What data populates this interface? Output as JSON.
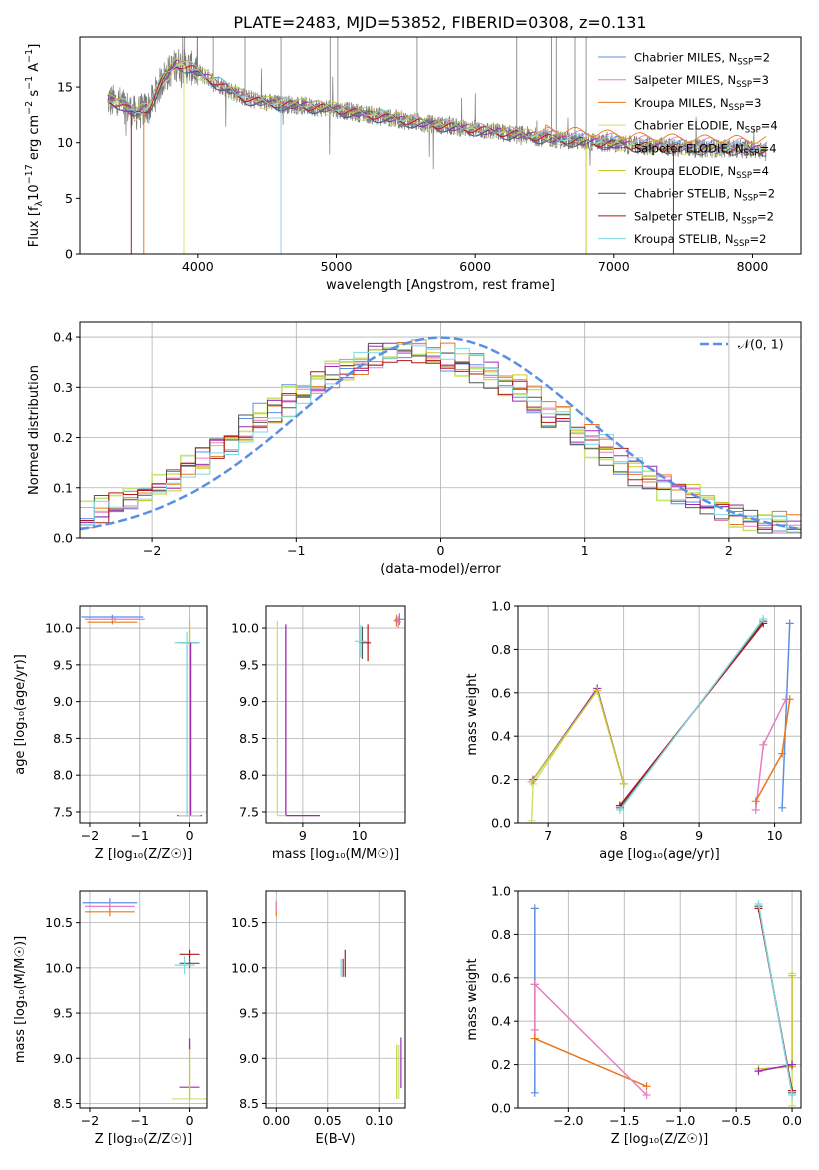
{
  "title": "PLATE=2483, MJD=53852, FIBERID=0308, z=0.131",
  "colors": {
    "chabrier_miles": "#5b8ee6",
    "salpeter_miles": "#e67fc2",
    "kroupa_miles": "#e87820",
    "chabrier_elodie": "#c8e46e",
    "salpeter_elodie": "#9c2bb8",
    "kroupa_elodie": "#c9c930",
    "chabrier_stelib": "#555555",
    "salpeter_stelib": "#b01818",
    "kroupa_stelib": "#7fd8e2",
    "data": "#7a7a7a",
    "gauss": "#5b8ee6"
  },
  "panels": {
    "spectrum": {
      "xlabel": "wavelength [Angstrom, rest frame]",
      "ylabel_main": "Flux [f",
      "ylabel_tail": "erg cm",
      "ylabel_end": "s",
      "xticks": [
        "4000",
        "5000",
        "6000",
        "7000",
        "8000"
      ],
      "yticks": [
        "0",
        "5",
        "10",
        "15"
      ]
    },
    "residuals": {
      "xlabel": "(data-model)/error",
      "ylabel": "Normed distribution",
      "xticks": [
        "−2",
        "−1",
        "0",
        "1",
        "2"
      ],
      "yticks": [
        "0.0",
        "0.1",
        "0.2",
        "0.3",
        "0.4"
      ],
      "gauss_label": "𝒩(0, 1)"
    },
    "z_age": {
      "xlabel": "Z [log₁₀(Z/Z☉)]",
      "ylabel": "age  [log₁₀(age/yr)]",
      "xticks": [
        "−2",
        "−1",
        "0"
      ],
      "yticks": [
        "7.5",
        "8.0",
        "8.5",
        "9.0",
        "9.5",
        "10.0"
      ]
    },
    "mass_age": {
      "xlabel": "mass [log₁₀(M/M☉)]",
      "xticks": [
        "9",
        "10"
      ],
      "yticks": [
        "7.5",
        "8.0",
        "8.5",
        "9.0",
        "9.5",
        "10.0"
      ]
    },
    "age_weight": {
      "xlabel": "age  [log₁₀(age/yr)]",
      "ylabel": "mass weight",
      "xticks": [
        "7",
        "8",
        "9",
        "10"
      ],
      "yticks": [
        "0.0",
        "0.2",
        "0.4",
        "0.6",
        "0.8",
        "1.0"
      ]
    },
    "z_mass": {
      "xlabel": "Z [log₁₀(Z/Z☉)]",
      "ylabel": "mass [log₁₀(M/M☉)]",
      "xticks": [
        "−2",
        "−1",
        "0"
      ],
      "yticks": [
        "8.5",
        "9.0",
        "9.5",
        "10.0",
        "10.5"
      ]
    },
    "ebv_mass": {
      "xlabel": "E(B-V)",
      "xticks": [
        "0.00",
        "0.05",
        "0.10"
      ],
      "yticks": [
        "8.5",
        "9.0",
        "9.5",
        "10.0",
        "10.5"
      ]
    },
    "z_weight": {
      "xlabel": "Z [log₁₀(Z/Z☉)]",
      "ylabel": "mass weight",
      "xticks": [
        "−2.0",
        "−1.5",
        "−1.0",
        "−0.5",
        "0.0"
      ],
      "yticks": [
        "0.0",
        "0.2",
        "0.4",
        "0.6",
        "0.8",
        "1.0"
      ]
    }
  },
  "chart_data": [
    {
      "type": "line",
      "title": "PLATE=2483, MJD=53852, FIBERID=0308, z=0.131",
      "xlabel": "wavelength [Angstrom, rest frame]",
      "ylabel": "Flux [fλ 10^-17 erg cm^-2 s^-1 A^-1]",
      "xlim": [
        3150,
        8350
      ],
      "ylim": [
        0,
        19.5
      ],
      "legend_placement": "upper-right",
      "series": [
        {
          "name": "Chabrier MILES, N_SSP=2",
          "key": "chabrier_miles"
        },
        {
          "name": "Salpeter MILES, N_SSP=3",
          "key": "salpeter_miles"
        },
        {
          "name": "Kroupa MILES, N_SSP=3",
          "key": "kroupa_miles"
        },
        {
          "name": "Chabrier ELODIE, N_SSP=4",
          "key": "chabrier_elodie"
        },
        {
          "name": "Salpeter ELODIE, N_SSP=4",
          "key": "salpeter_elodie"
        },
        {
          "name": "Kroupa ELODIE, N_SSP=4",
          "key": "kroupa_elodie"
        },
        {
          "name": "Chabrier STELIB, N_SSP=2",
          "key": "chabrier_stelib"
        },
        {
          "name": "Salpeter STELIB, N_SSP=2",
          "key": "salpeter_stelib"
        },
        {
          "name": "Kroupa STELIB, N_SSP=2",
          "key": "kroupa_stelib"
        }
      ],
      "continuum": {
        "x": [
          3350,
          3450,
          3550,
          3650,
          3750,
          3850,
          3950,
          4050,
          4150,
          4250,
          4350,
          4450,
          4550,
          4700,
          4850,
          5000,
          5200,
          5400,
          5600,
          5800,
          6000,
          6200,
          6400,
          6600,
          6800,
          7000,
          7200,
          7400,
          7600,
          7800,
          8000,
          8100
        ],
        "y": [
          13.8,
          13.5,
          12.6,
          13.2,
          15.8,
          17.1,
          16.7,
          16.0,
          15.3,
          14.6,
          14.0,
          13.7,
          13.5,
          13.4,
          13.2,
          13.0,
          12.6,
          12.2,
          11.8,
          11.5,
          11.2,
          10.9,
          10.6,
          10.3,
          10.1,
          9.9,
          9.7,
          9.6,
          9.5,
          9.5,
          9.4,
          9.4
        ]
      }
    },
    {
      "type": "bar",
      "xlabel": "(data-model)/error",
      "ylabel": "Normed distribution",
      "xlim": [
        -2.5,
        2.5
      ],
      "ylim": [
        0,
        0.43
      ],
      "grid": true,
      "legend_placement": "upper-right",
      "gauss": {
        "name": "𝒩(0,1)",
        "mean": 0,
        "sigma": 1
      }
    },
    {
      "type": "scatter",
      "xlabel": "Z [log10(Z/Zsun)]",
      "ylabel": "age [log10(age/yr)]",
      "xlim": [
        -2.2,
        0.35
      ],
      "ylim": [
        7.35,
        10.3
      ],
      "points": [
        {
          "key": "chabrier_miles",
          "x": -1.55,
          "y": 10.15,
          "xerr": 0.62,
          "yerr": 0.03
        },
        {
          "key": "salpeter_miles",
          "x": -1.5,
          "y": 10.12,
          "xerr": 0.6,
          "yerr": 0.03
        },
        {
          "key": "kroupa_miles",
          "x": -1.55,
          "y": 10.08,
          "xerr": 0.5,
          "yerr": 0.03
        },
        {
          "key": "chabrier_stelib",
          "x": 0.0,
          "y": 9.8,
          "xerr": 0.2,
          "yerr": 0.05
        },
        {
          "key": "kroupa_stelib",
          "x": -0.05,
          "y": 9.8,
          "xerr": 0.25,
          "yerr": 0.15
        },
        {
          "key": "salpeter_elodie",
          "x": 0.0,
          "y": 7.45,
          "xerr": 0.25,
          "yerr": 0.0
        },
        {
          "key": "chabrier_elodie",
          "x": 0.0,
          "y": 7.45,
          "xerr": 0.22,
          "yerr": 0.0
        }
      ],
      "vlines": [
        {
          "key": "kroupa_elodie",
          "x": 0.0,
          "y0": 7.45,
          "y1": 10.1
        },
        {
          "key": "salpeter_elodie",
          "x": 0.02,
          "y0": 7.45,
          "y1": 9.8
        },
        {
          "key": "kroupa_stelib",
          "x": -0.05,
          "y0": 7.45,
          "y1": 9.8
        }
      ]
    },
    {
      "type": "scatter",
      "xlabel": "mass [log10(M/Msun)]",
      "xlim": [
        8.35,
        10.8
      ],
      "ylim": [
        7.35,
        10.3
      ],
      "points": [
        {
          "key": "salpeter_stelib",
          "x": 10.15,
          "y": 9.8,
          "xerr": 0.05,
          "yerr": 0.25
        },
        {
          "key": "chabrier_stelib",
          "x": 10.05,
          "y": 9.8,
          "xerr": 0.05,
          "yerr": 0.22
        },
        {
          "key": "kroupa_stelib",
          "x": 10.02,
          "y": 9.82,
          "xerr": 0.1,
          "yerr": 0.22
        },
        {
          "key": "kroupa_miles",
          "x": 10.65,
          "y": 10.1,
          "xerr": 0.05,
          "yerr": 0.08
        },
        {
          "key": "chabrier_miles",
          "x": 10.7,
          "y": 10.12,
          "xerr": 0.08,
          "yerr": 0.08
        },
        {
          "key": "salpeter_miles",
          "x": 10.68,
          "y": 10.08,
          "xerr": 0.05,
          "yerr": 0.08
        }
      ],
      "vlines": [
        {
          "key": "chabrier_elodie",
          "x": 8.55,
          "y0": 7.45,
          "y1": 10.1
        },
        {
          "key": "salpeter_elodie",
          "x": 8.7,
          "y0": 7.45,
          "y1": 10.05
        }
      ],
      "hlines": [
        {
          "key": "chabrier_elodie",
          "y": 7.45,
          "x0": 8.55,
          "x1": 9.3
        },
        {
          "key": "salpeter_elodie",
          "y": 7.45,
          "x0": 8.7,
          "x1": 9.3
        }
      ]
    },
    {
      "type": "line",
      "xlabel": "age [log10(age/yr)]",
      "ylabel": "mass weight",
      "xlim": [
        6.6,
        10.35
      ],
      "ylim": [
        0,
        1.0
      ],
      "grid": true,
      "series": [
        {
          "key": "chabrier_miles",
          "x": [
            10.1,
            10.2
          ],
          "y": [
            0.07,
            0.92
          ]
        },
        {
          "key": "salpeter_miles",
          "x": [
            9.75,
            9.85,
            10.15
          ],
          "y": [
            0.06,
            0.36,
            0.57
          ]
        },
        {
          "key": "kroupa_miles",
          "x": [
            9.75,
            10.1,
            10.2
          ],
          "y": [
            0.1,
            0.32,
            0.57
          ]
        },
        {
          "key": "chabrier_elodie",
          "x": [
            6.78,
            6.8,
            7.65,
            8.0
          ],
          "y": [
            0.01,
            0.18,
            0.62,
            0.18
          ]
        },
        {
          "key": "salpeter_elodie",
          "x": [
            6.8,
            7.65,
            8.0
          ],
          "y": [
            0.2,
            0.62,
            0.18
          ]
        },
        {
          "key": "kroupa_elodie",
          "x": [
            6.78,
            7.65,
            8.0
          ],
          "y": [
            0.19,
            0.61,
            0.18
          ]
        },
        {
          "key": "chabrier_stelib",
          "x": [
            7.95,
            9.85
          ],
          "y": [
            0.07,
            0.93
          ]
        },
        {
          "key": "salpeter_stelib",
          "x": [
            7.95,
            9.85
          ],
          "y": [
            0.08,
            0.92
          ]
        },
        {
          "key": "kroupa_stelib",
          "x": [
            7.95,
            9.85
          ],
          "y": [
            0.06,
            0.94
          ]
        }
      ]
    },
    {
      "type": "scatter",
      "xlabel": "Z [log10(Z/Zsun)]",
      "ylabel": "mass [log10(M/Msun)]",
      "xlim": [
        -2.2,
        0.35
      ],
      "ylim": [
        8.45,
        10.85
      ],
      "points": [
        {
          "key": "chabrier_miles",
          "x": -1.6,
          "y": 10.72,
          "xerr": 0.55,
          "yerr": 0.05
        },
        {
          "key": "salpeter_miles",
          "x": -1.6,
          "y": 10.68,
          "xerr": 0.5,
          "yerr": 0.05
        },
        {
          "key": "kroupa_miles",
          "x": -1.6,
          "y": 10.62,
          "xerr": 0.5,
          "yerr": 0.05
        },
        {
          "key": "salpeter_stelib",
          "x": 0.0,
          "y": 10.15,
          "xerr": 0.2,
          "yerr": 0.05
        },
        {
          "key": "chabrier_stelib",
          "x": 0.0,
          "y": 10.05,
          "xerr": 0.2,
          "yerr": 0.05
        },
        {
          "key": "kroupa_stelib",
          "x": -0.1,
          "y": 10.03,
          "xerr": 0.2,
          "yerr": 0.1
        },
        {
          "key": "salpeter_elodie",
          "x": 0.0,
          "y": 8.68,
          "xerr": 0.2,
          "yerr": 0.0
        },
        {
          "key": "chabrier_elodie",
          "x": 0.0,
          "y": 8.55,
          "xerr": 0.35,
          "yerr": 0.0
        }
      ],
      "vlines": [
        {
          "key": "kroupa_elodie",
          "x": 0.0,
          "y0": 8.55,
          "y1": 9.15
        },
        {
          "key": "salpeter_elodie",
          "x": 0.0,
          "y0": 9.1,
          "y1": 9.22
        }
      ]
    },
    {
      "type": "scatter",
      "xlabel": "E(B-V)",
      "xlim": [
        -0.01,
        0.125
      ],
      "ylim": [
        8.45,
        10.85
      ],
      "points": [
        {
          "key": "kroupa_miles",
          "x": 0.0,
          "y": 10.65,
          "xerr": 0.0,
          "yerr": 0.08
        },
        {
          "key": "salpeter_miles",
          "x": 0.0,
          "y": 10.68,
          "xerr": 0.0,
          "yerr": 0.06
        },
        {
          "key": "salpeter_stelib",
          "x": 0.067,
          "y": 10.05,
          "xerr": 0.0,
          "yerr": 0.15
        },
        {
          "key": "chabrier_stelib",
          "x": 0.065,
          "y": 10.0,
          "xerr": 0.0,
          "yerr": 0.1
        },
        {
          "key": "kroupa_stelib",
          "x": 0.063,
          "y": 10.0,
          "xerr": 0.0,
          "yerr": 0.1
        },
        {
          "key": "kroupa_elodie",
          "x": 0.117,
          "y": 8.85,
          "xerr": 0.0,
          "yerr": 0.3
        },
        {
          "key": "salpeter_elodie",
          "x": 0.121,
          "y": 8.95,
          "xerr": 0.0,
          "yerr": 0.28
        },
        {
          "key": "chabrier_elodie",
          "x": 0.119,
          "y": 8.85,
          "xerr": 0.0,
          "yerr": 0.3
        }
      ]
    },
    {
      "type": "line",
      "xlabel": "Z [log10(Z/Zsun)]",
      "ylabel": "mass weight",
      "xlim": [
        -2.45,
        0.08
      ],
      "ylim": [
        0,
        1.0
      ],
      "grid": true,
      "series": [
        {
          "key": "chabrier_miles",
          "x": [
            -2.3,
            -2.3
          ],
          "y": [
            0.07,
            0.92
          ]
        },
        {
          "key": "kroupa_miles",
          "x": [
            -2.3,
            -2.3,
            -1.3
          ],
          "y": [
            0.57,
            0.32,
            0.1
          ]
        },
        {
          "key": "salpeter_miles",
          "x": [
            -2.3,
            -2.3,
            -1.3
          ],
          "y": [
            0.36,
            0.57,
            0.06
          ]
        },
        {
          "key": "chabrier_elodie",
          "x": [
            -0.3,
            0.0,
            0.0,
            0.0
          ],
          "y": [
            0.18,
            0.19,
            0.62,
            0.01
          ]
        },
        {
          "key": "kroupa_elodie",
          "x": [
            -0.3,
            0.0,
            0.0
          ],
          "y": [
            0.18,
            0.19,
            0.61
          ]
        },
        {
          "key": "salpeter_elodie",
          "x": [
            -0.3,
            0.0
          ],
          "y": [
            0.17,
            0.2
          ]
        },
        {
          "key": "chabrier_stelib",
          "x": [
            -0.3,
            0.0
          ],
          "y": [
            0.93,
            0.07
          ]
        },
        {
          "key": "salpeter_stelib",
          "x": [
            -0.3,
            0.0
          ],
          "y": [
            0.92,
            0.08
          ]
        },
        {
          "key": "kroupa_stelib",
          "x": [
            -0.3,
            0.0
          ],
          "y": [
            0.94,
            0.06
          ]
        }
      ]
    }
  ]
}
